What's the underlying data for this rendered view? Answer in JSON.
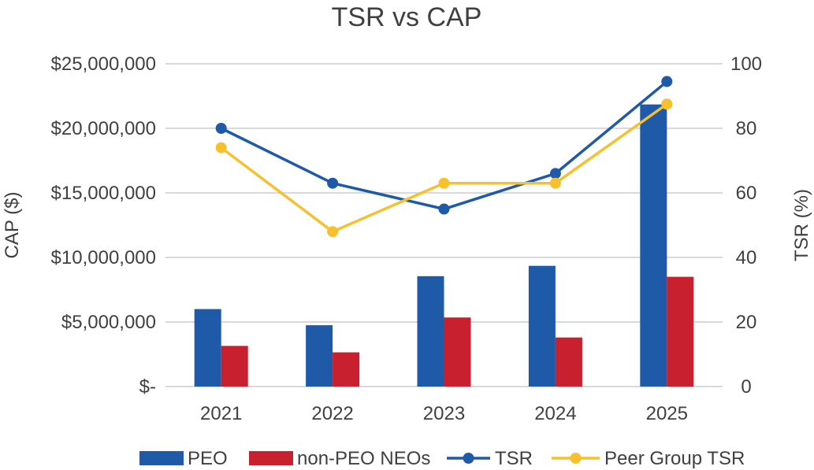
{
  "chart_data": {
    "type": "bar",
    "title": "TSR vs CAP",
    "categories": [
      "2021",
      "2022",
      "2023",
      "2024",
      "2025"
    ],
    "y_left": {
      "label": "CAP ($)",
      "ylim": [
        0,
        25000000
      ],
      "ticks": [
        0,
        5000000,
        10000000,
        15000000,
        20000000,
        25000000
      ],
      "tick_labels": [
        "$-",
        "$5,000,000",
        "$10,000,000",
        "$15,000,000",
        "$20,000,000",
        "$25,000,000"
      ]
    },
    "y_right": {
      "label": "TSR (%)",
      "ylim": [
        0,
        100
      ],
      "ticks": [
        0,
        20,
        40,
        60,
        80,
        100
      ],
      "tick_labels": [
        "0",
        "20",
        "40",
        "60",
        "80",
        "100"
      ]
    },
    "series": [
      {
        "name": "PEO",
        "type": "bar",
        "axis": "left",
        "color": "#1f5aa8",
        "values": [
          6000000,
          4750000,
          8550000,
          9350000,
          21850000
        ]
      },
      {
        "name": "non-PEO NEOs",
        "type": "bar",
        "axis": "left",
        "color": "#c8202f",
        "values": [
          3150000,
          2650000,
          5350000,
          3800000,
          8500000
        ]
      },
      {
        "name": "TSR",
        "type": "line",
        "axis": "right",
        "color": "#1f5aa8",
        "values": [
          80,
          63,
          55,
          66,
          94.5
        ]
      },
      {
        "name": "Peer Group TSR",
        "type": "line",
        "axis": "right",
        "color": "#f6c02e",
        "values": [
          74,
          48,
          63,
          63,
          87.5
        ]
      }
    ],
    "grid": true,
    "legend": "bottom"
  }
}
